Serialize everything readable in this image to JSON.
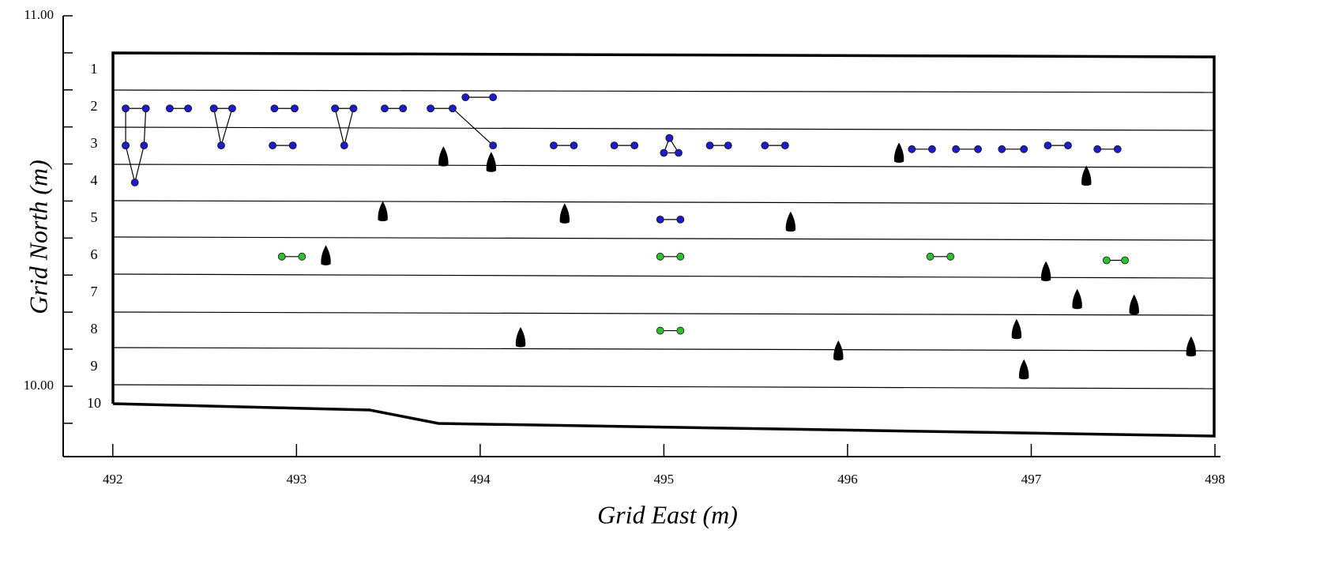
{
  "chart_data": {
    "type": "scatter",
    "xlabel": "Grid East (m)",
    "ylabel": "Grid North (m)",
    "xlim": [
      491.73,
      498.03
    ],
    "ylim": [
      9.81,
      11.0
    ],
    "xticks": [
      492,
      493,
      494,
      495,
      496,
      497,
      498
    ],
    "yticks": [
      {
        "value": 11.0,
        "label": "11.00"
      },
      {
        "value": 10.0,
        "label": "10.00"
      }
    ],
    "yminor_ticks": [
      10.9,
      10.8,
      10.7,
      10.6,
      10.5,
      10.4,
      10.3,
      10.2,
      10.1,
      9.9
    ],
    "row_labels": [
      "1",
      "2",
      "3",
      "4",
      "5",
      "6",
      "7",
      "8",
      "9",
      "10"
    ],
    "series": [
      {
        "marker": "dot-line",
        "color": "#1c1cc8",
        "x": [
          492.07,
          492.07,
          492.18,
          492.17,
          492.12,
          492.07
        ],
        "y": [
          10.65,
          10.75,
          10.75,
          10.65,
          10.55,
          10.65
        ]
      },
      {
        "marker": "dot-line",
        "color": "#1c1cc8",
        "x": [
          492.31,
          492.41
        ],
        "y": [
          10.75,
          10.75
        ]
      },
      {
        "marker": "dot-line",
        "color": "#1c1cc8",
        "x": [
          492.55,
          492.65,
          492.59,
          492.55
        ],
        "y": [
          10.75,
          10.75,
          10.65,
          10.75
        ]
      },
      {
        "marker": "dot-line",
        "color": "#1c1cc8",
        "x": [
          492.88,
          492.99
        ],
        "y": [
          10.75,
          10.75
        ]
      },
      {
        "marker": "dot-line",
        "color": "#1c1cc8",
        "x": [
          492.87,
          492.98
        ],
        "y": [
          10.65,
          10.65
        ]
      },
      {
        "marker": "dot-line",
        "color": "#1c1cc8",
        "x": [
          493.21,
          493.31,
          493.26,
          493.21
        ],
        "y": [
          10.75,
          10.75,
          10.65,
          10.75
        ]
      },
      {
        "marker": "dot-line",
        "color": "#1c1cc8",
        "x": [
          493.48,
          493.58
        ],
        "y": [
          10.75,
          10.75
        ]
      },
      {
        "marker": "dot-line",
        "color": "#1c1cc8",
        "x": [
          493.73,
          493.85,
          494.07
        ],
        "y": [
          10.75,
          10.75,
          10.65
        ]
      },
      {
        "marker": "dot-line",
        "color": "#1c1cc8",
        "x": [
          493.92,
          494.07
        ],
        "y": [
          10.78,
          10.78
        ]
      },
      {
        "marker": "dot-line",
        "color": "#1c1cc8",
        "x": [
          494.4,
          494.51
        ],
        "y": [
          10.65,
          10.65
        ]
      },
      {
        "marker": "dot-line",
        "color": "#1c1cc8",
        "x": [
          494.73,
          494.84
        ],
        "y": [
          10.65,
          10.65
        ]
      },
      {
        "marker": "dot-line",
        "color": "#1c1cc8",
        "x": [
          495.03,
          495.0,
          495.08,
          495.03
        ],
        "y": [
          10.67,
          10.63,
          10.63,
          10.67
        ]
      },
      {
        "marker": "dot-line",
        "color": "#1c1cc8",
        "x": [
          495.25,
          495.35
        ],
        "y": [
          10.65,
          10.65
        ]
      },
      {
        "marker": "dot-line",
        "color": "#1c1cc8",
        "x": [
          495.55,
          495.66
        ],
        "y": [
          10.65,
          10.65
        ]
      },
      {
        "marker": "dot-line",
        "color": "#1c1cc8",
        "x": [
          496.35,
          496.46
        ],
        "y": [
          10.64,
          10.64
        ]
      },
      {
        "marker": "dot-line",
        "color": "#1c1cc8",
        "x": [
          496.59,
          496.71
        ],
        "y": [
          10.64,
          10.64
        ]
      },
      {
        "marker": "dot-line",
        "color": "#1c1cc8",
        "x": [
          496.84,
          496.96
        ],
        "y": [
          10.64,
          10.64
        ]
      },
      {
        "marker": "dot-line",
        "color": "#1c1cc8",
        "x": [
          497.09,
          497.2
        ],
        "y": [
          10.65,
          10.65
        ]
      },
      {
        "marker": "dot-line",
        "color": "#1c1cc8",
        "x": [
          497.36,
          497.47
        ],
        "y": [
          10.64,
          10.64
        ]
      },
      {
        "marker": "dot-line",
        "color": "#1c1cc8",
        "x": [
          494.98,
          495.09
        ],
        "y": [
          10.45,
          10.45
        ]
      },
      {
        "marker": "dot-line",
        "color": "#2ec02e",
        "x": [
          492.92,
          493.03
        ],
        "y": [
          10.35,
          10.35
        ]
      },
      {
        "marker": "dot-line",
        "color": "#2ec02e",
        "x": [
          494.98,
          495.09
        ],
        "y": [
          10.35,
          10.35
        ]
      },
      {
        "marker": "dot-line",
        "color": "#2ec02e",
        "x": [
          496.45,
          496.56
        ],
        "y": [
          10.35,
          10.35
        ]
      },
      {
        "marker": "dot-line",
        "color": "#2ec02e",
        "x": [
          497.41,
          497.51
        ],
        "y": [
          10.34,
          10.34
        ]
      },
      {
        "marker": "dot-line",
        "color": "#2ec02e",
        "x": [
          494.98,
          495.09
        ],
        "y": [
          10.15,
          10.15
        ]
      },
      {
        "marker": "silhouette",
        "color": "#000000",
        "x": [
          493.8,
          494.06,
          493.47,
          494.46,
          495.69,
          493.16,
          496.28,
          497.3,
          497.08,
          497.25,
          497.56,
          494.22,
          496.92,
          495.95,
          497.87,
          496.96
        ],
        "y": [
          10.62,
          10.605,
          10.472,
          10.466,
          10.444,
          10.353,
          10.63,
          10.568,
          10.31,
          10.235,
          10.22,
          10.132,
          10.154,
          10.096,
          10.107,
          10.045
        ]
      }
    ]
  }
}
